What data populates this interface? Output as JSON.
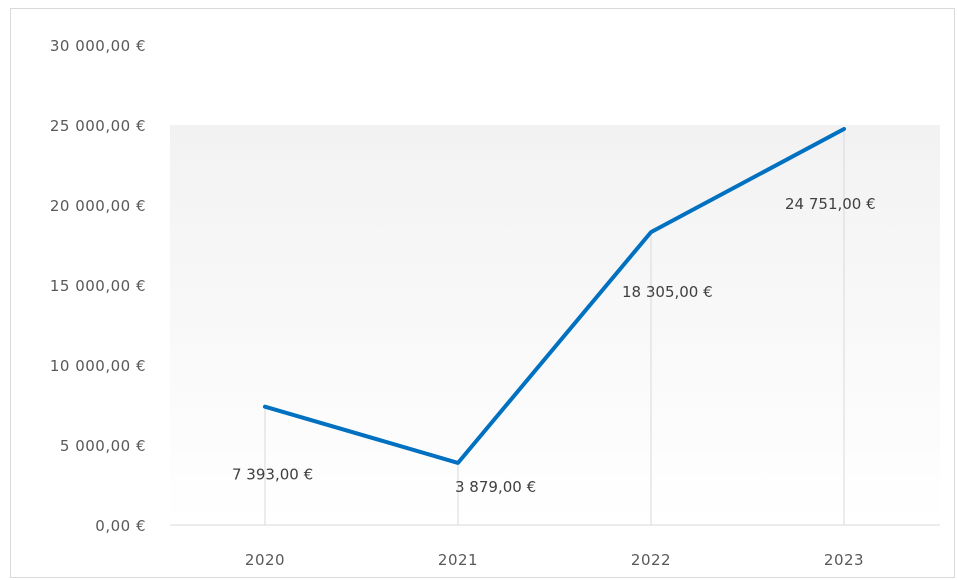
{
  "chart_data": {
    "type": "line",
    "categories": [
      "2020",
      "2021",
      "2022",
      "2023"
    ],
    "series": [
      {
        "values": [
          7393,
          3879,
          18305,
          24751
        ]
      }
    ],
    "data_labels": [
      "7 393,00 €",
      "3 879,00 €",
      "18 305,00 €",
      "24 751,00 €"
    ],
    "y_ticks": [
      "0,00 €",
      "5 000,00 €",
      "10 000,00 €",
      "15 000,00 €",
      "20 000,00 €",
      "25 000,00 €",
      "30 000,00 €"
    ],
    "ylim": [
      0,
      30000
    ],
    "y_step": 5000,
    "grid": false,
    "drop_lines": true,
    "line_color": "#0070c0",
    "drop_line_color": "#d9d9d9",
    "axis_color": "#d9d9d9"
  }
}
